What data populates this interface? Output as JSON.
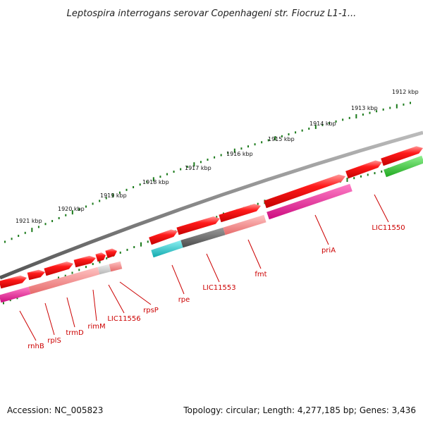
{
  "title": "Leptospira interrogans serovar Copenhageni str. Fiocruz L1-1...",
  "accession": "Accession: NC_005823",
  "summary": "Topology: circular; Length: 4,277,185 bp; Genes: 3,436",
  "kbp_labels": [
    "1921 kbp",
    "1920 kbp",
    "1919 kbp",
    "1918 kbp",
    "1917 kbp",
    "1916 kbp",
    "1915 kbp",
    "1914 kbp",
    "1913 kbp",
    "1912 kbp"
  ],
  "gene_labels": [
    "rnhB",
    "rplS",
    "trmD",
    "rimM",
    "LIC11556",
    "rpsP",
    "rpe",
    "LIC11553",
    "fmt",
    "priA",
    "LIC11550"
  ],
  "colors": {
    "backbone": "#777777",
    "ticks": "#1a7a1a",
    "gene_red": "#ee0000",
    "gene_pink": "#f08080",
    "gene_magenta": "#e0168f",
    "gene_cyan": "#19c3c8",
    "gene_gray": "#666666",
    "gene_lightgray": "#cccccc",
    "gene_green": "#2ec42e",
    "label_red": "#cc0000"
  }
}
